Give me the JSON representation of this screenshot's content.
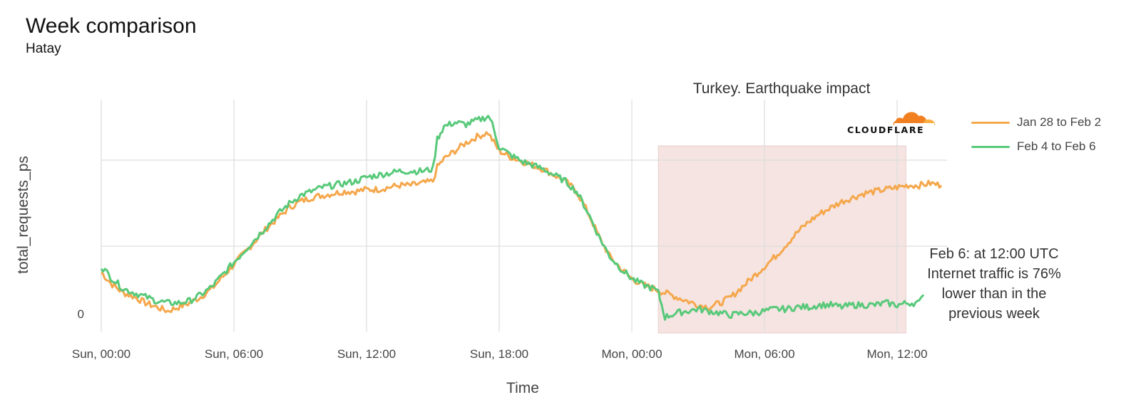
{
  "header": {
    "title": "Week comparison",
    "subtitle": "Hatay"
  },
  "logo": {
    "text": "CLOUDFLARE",
    "colors": {
      "cloud_dark": "#f38020",
      "cloud_light": "#faae40",
      "text": "#111111"
    }
  },
  "annotation": {
    "lines": [
      "Feb 6: at 12:00 UTC",
      "Internet traffic is 76%",
      "lower than in the",
      "previous week"
    ]
  },
  "chart_data": {
    "type": "line",
    "title": "Turkey. Earthquake impact",
    "xlabel": "Time",
    "ylabel": "total_requests_ps",
    "x_ticks": [
      "Sun, 00:00",
      "Sun, 06:00",
      "Sun, 12:00",
      "Sun, 18:00",
      "Mon, 00:00",
      "Mon, 06:00",
      "Mon, 12:00"
    ],
    "y_ticks": [
      "0"
    ],
    "xlim_hours": [
      0,
      38
    ],
    "ylim": [
      0,
      100
    ],
    "grid": true,
    "legend_position": "right",
    "highlight_region": {
      "x_start_hours": 1.2,
      "x_end_hours": 12.4,
      "day": "Mon",
      "color": "#f5e4e2"
    },
    "series": [
      {
        "name": "Jan 28 to Feb 2",
        "color": "#f5a74b",
        "x_hours": [
          0,
          0.5,
          1,
          1.5,
          2,
          2.5,
          3,
          3.5,
          4,
          4.5,
          5,
          5.5,
          6,
          6.5,
          7,
          7.5,
          8,
          8.5,
          9,
          9.5,
          10,
          10.5,
          11,
          11.5,
          12,
          12.5,
          13,
          13.5,
          14,
          14.5,
          15,
          15.2,
          15.5,
          16,
          16.5,
          17,
          17.5,
          17.6,
          18,
          18.5,
          19,
          19.5,
          20,
          20.5,
          21,
          21.5,
          22,
          22.5,
          23,
          23.5,
          24,
          24.5,
          25,
          25.5,
          26,
          26.5,
          27,
          27.5,
          28,
          28.5,
          29,
          29.5,
          30,
          30.5,
          31,
          31.5,
          32,
          32.5,
          33,
          33.5,
          34,
          34.5,
          35,
          35.5,
          36,
          36.5,
          37,
          37.5,
          38
        ],
        "values": [
          20,
          14,
          10,
          8,
          5,
          3,
          1,
          3,
          5,
          8,
          12,
          18,
          24,
          30,
          36,
          42,
          47,
          52,
          55,
          57,
          58,
          59,
          60,
          60,
          61,
          61,
          62,
          63,
          63,
          64,
          65,
          72,
          76,
          80,
          84,
          87,
          89,
          87,
          80,
          77,
          75,
          73,
          71,
          68,
          65,
          60,
          50,
          38,
          28,
          22,
          17,
          14,
          12,
          10,
          8,
          6,
          4,
          3,
          5,
          8,
          13,
          18,
          23,
          28,
          34,
          40,
          45,
          49,
          52,
          55,
          57,
          59,
          60,
          61,
          62,
          63,
          63,
          64,
          63
        ]
      },
      {
        "name": "Feb 4 to Feb 6",
        "color": "#58c97a",
        "x_hours": [
          0,
          0.5,
          1,
          1.5,
          2,
          2.5,
          3,
          3.5,
          4,
          4.5,
          5,
          5.5,
          6,
          6.5,
          7,
          7.5,
          8,
          8.5,
          9,
          9.5,
          10,
          10.5,
          11,
          11.5,
          12,
          12.5,
          13,
          13.5,
          14,
          14.5,
          15,
          15.2,
          15.5,
          16,
          16.5,
          17,
          17.5,
          17.6,
          18,
          18.5,
          19,
          19.5,
          20,
          20.5,
          21,
          21.5,
          22,
          22.5,
          23,
          23.5,
          24,
          24.5,
          25,
          25.2,
          25.5,
          26,
          26.5,
          27,
          27.5,
          28,
          28.5,
          29,
          29.5,
          30,
          30.5,
          31,
          31.5,
          32,
          32.5,
          33,
          33.5,
          34,
          34.5,
          35,
          35.5,
          36,
          36.5,
          37,
          37.2
        ],
        "values": [
          23,
          17,
          12,
          10,
          8,
          6,
          5,
          5,
          6,
          9,
          13,
          19,
          25,
          31,
          37,
          43,
          49,
          54,
          58,
          60,
          62,
          63,
          64,
          65,
          67,
          68,
          69,
          70,
          70,
          70,
          71,
          86,
          92,
          94,
          93,
          95,
          97,
          96,
          82,
          78,
          75,
          73,
          71,
          68,
          65,
          60,
          50,
          38,
          28,
          22,
          17,
          14,
          12,
          10,
          -2,
          0,
          1,
          2,
          1,
          0,
          -1,
          0,
          0,
          1,
          2,
          2,
          3,
          3,
          4,
          4,
          3,
          4,
          4,
          4,
          5,
          4,
          5,
          5,
          9
        ]
      }
    ]
  }
}
